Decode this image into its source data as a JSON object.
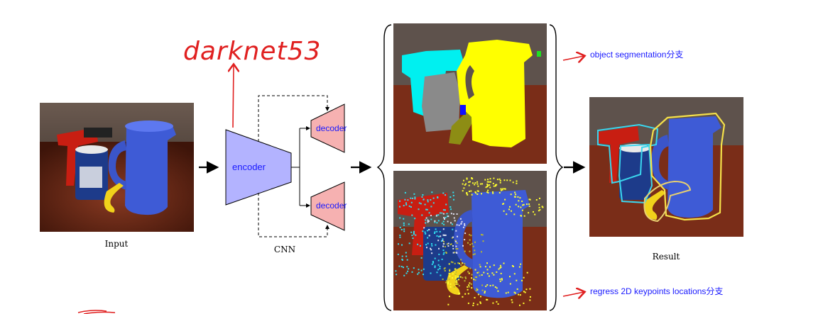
{
  "handwritten_note": "darknet53",
  "labels": {
    "input": "Input",
    "cnn": "CNN",
    "encoder": "encoder",
    "decoder_top": "decoder",
    "decoder_bottom": "decoder",
    "result": "Result"
  },
  "annotations": {
    "segmentation": "object segmentation分支",
    "keypoints": "regress 2D keypoints locations分支"
  },
  "colors": {
    "encoder_fill": "#b3b3ff",
    "decoder_fill": "#f6b1b1",
    "annotation_red": "#e02020",
    "annotation_blue": "#1a1aff"
  }
}
